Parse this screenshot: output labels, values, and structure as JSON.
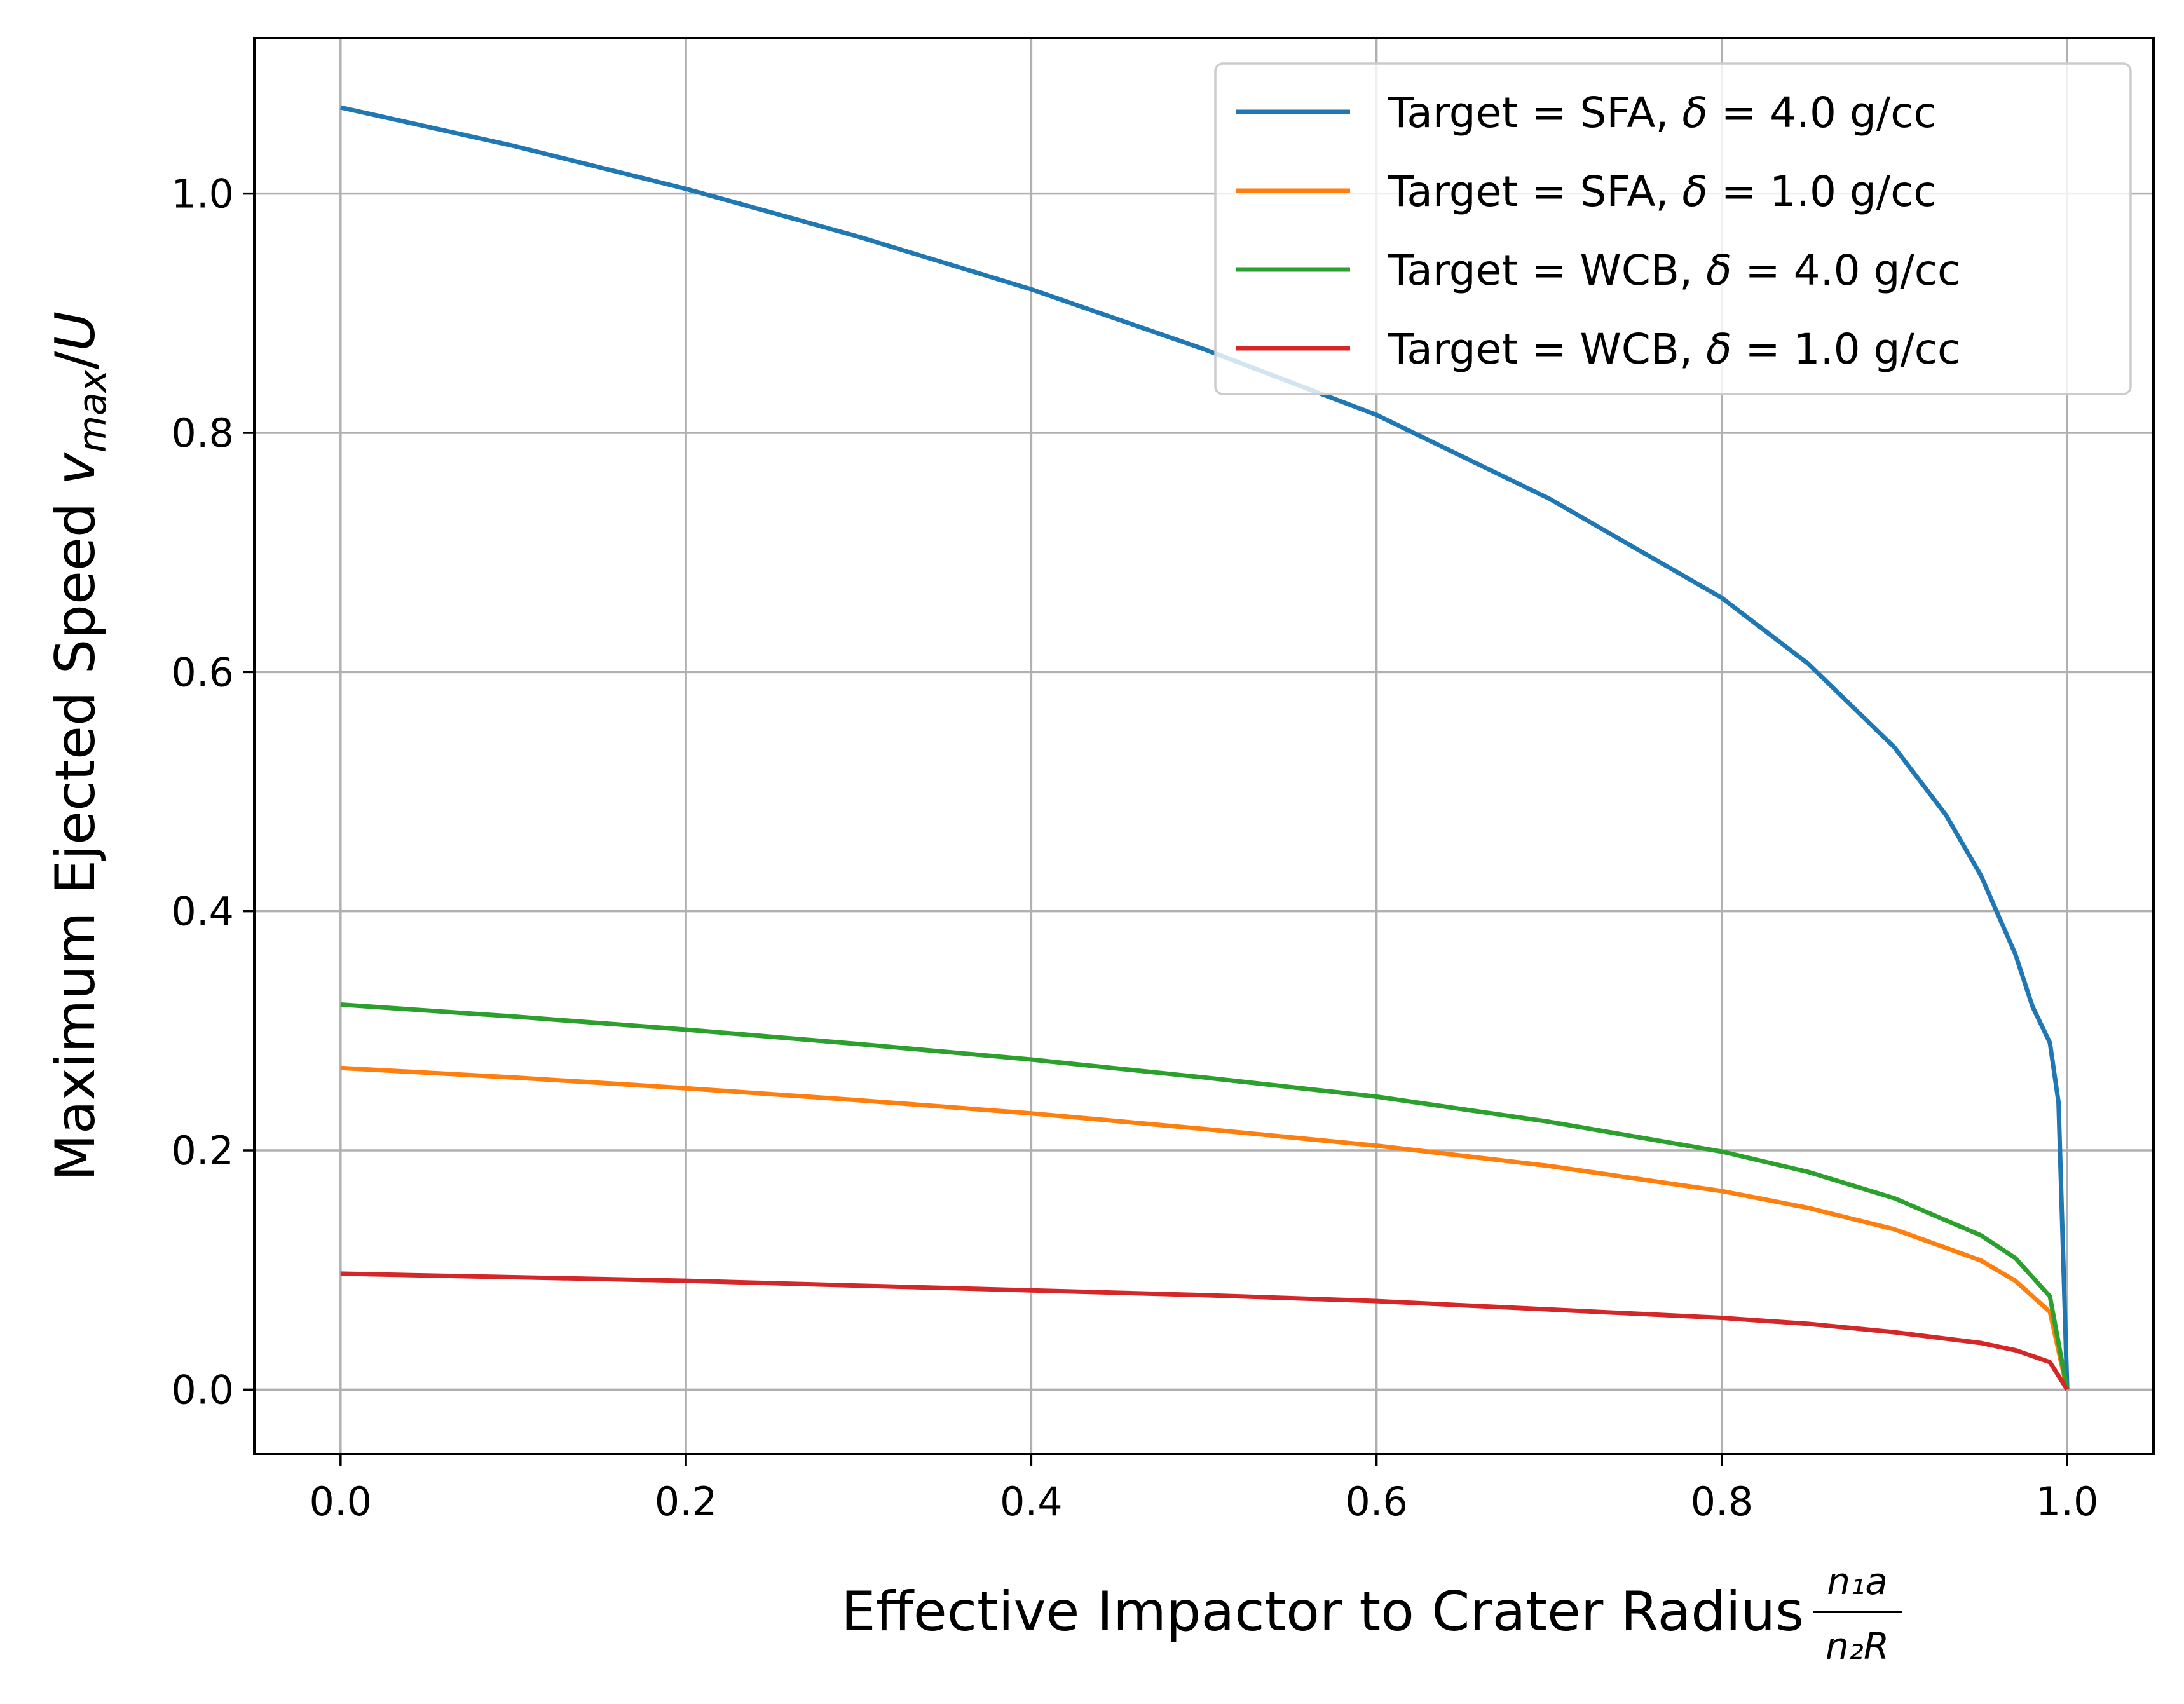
{
  "chart_data": {
    "type": "line",
    "title": "",
    "xlabel": "Effective Impactor to Crater Radius",
    "xlabel_fraction": {
      "numerator": "n₁a",
      "denominator": "n₂R"
    },
    "ylabel": "Maximum Ejected Speed",
    "ylabel_math": {
      "v": "v",
      "sub": "max",
      "slash": "/",
      "u": "U"
    },
    "xlim": [
      -0.05,
      1.05
    ],
    "ylim": [
      -0.054,
      1.13
    ],
    "xticks": [
      0.0,
      0.2,
      0.4,
      0.6,
      0.8,
      1.0
    ],
    "xtick_labels": [
      "0.0",
      "0.2",
      "0.4",
      "0.6",
      "0.8",
      "1.0"
    ],
    "yticks": [
      0.0,
      0.2,
      0.4,
      0.6,
      0.8,
      1.0
    ],
    "ytick_labels": [
      "0.0",
      "0.2",
      "0.4",
      "0.6",
      "0.8",
      "1.0"
    ],
    "grid": true,
    "legend_position": "top-right",
    "series": [
      {
        "name": "Target = SFA, δ = 4.0 g/cc",
        "legend": {
          "prefix": "Target = SFA, ",
          "symbol": "δ",
          "rest": " = 4.0 g/cc"
        },
        "color": "#1f77b4",
        "x": [
          0.0,
          0.1,
          0.2,
          0.3,
          0.4,
          0.5,
          0.6,
          0.7,
          0.8,
          0.85,
          0.9,
          0.93,
          0.95,
          0.97,
          0.98,
          0.99,
          0.995,
          1.0
        ],
        "y": [
          1.072,
          1.04,
          1.004,
          0.964,
          0.92,
          0.87,
          0.815,
          0.745,
          0.662,
          0.607,
          0.537,
          0.48,
          0.43,
          0.364,
          0.32,
          0.29,
          0.24,
          0.0
        ]
      },
      {
        "name": "Target = SFA, δ = 1.0 g/cc",
        "legend": {
          "prefix": "Target = SFA, ",
          "symbol": "δ",
          "rest": " = 1.0 g/cc"
        },
        "color": "#ff7f0e",
        "x": [
          0.0,
          0.1,
          0.2,
          0.3,
          0.4,
          0.5,
          0.6,
          0.7,
          0.8,
          0.85,
          0.9,
          0.95,
          0.97,
          0.99,
          1.0
        ],
        "y": [
          0.269,
          0.261,
          0.252,
          0.242,
          0.231,
          0.218,
          0.204,
          0.187,
          0.166,
          0.152,
          0.134,
          0.108,
          0.091,
          0.065,
          0.0
        ]
      },
      {
        "name": "Target = WCB, δ = 4.0 g/cc",
        "legend": {
          "prefix": "Target = WCB, ",
          "symbol": "δ",
          "rest": " = 4.0 g/cc"
        },
        "color": "#2ca02c",
        "x": [
          0.0,
          0.1,
          0.2,
          0.3,
          0.4,
          0.5,
          0.6,
          0.7,
          0.8,
          0.85,
          0.9,
          0.95,
          0.97,
          0.99,
          1.0
        ],
        "y": [
          0.322,
          0.312,
          0.301,
          0.289,
          0.276,
          0.261,
          0.245,
          0.224,
          0.199,
          0.182,
          0.16,
          0.129,
          0.11,
          0.078,
          0.0
        ]
      },
      {
        "name": "Target = WCB, δ = 1.0 g/cc",
        "legend": {
          "prefix": "Target = WCB, ",
          "symbol": "δ",
          "rest": " = 1.0 g/cc"
        },
        "color": "#d62728",
        "x": [
          0.0,
          0.1,
          0.2,
          0.3,
          0.4,
          0.5,
          0.6,
          0.7,
          0.8,
          0.85,
          0.9,
          0.95,
          0.97,
          0.99,
          1.0
        ],
        "y": [
          0.097,
          0.094,
          0.091,
          0.087,
          0.083,
          0.079,
          0.074,
          0.067,
          0.06,
          0.055,
          0.048,
          0.039,
          0.033,
          0.023,
          0.0
        ]
      }
    ]
  }
}
